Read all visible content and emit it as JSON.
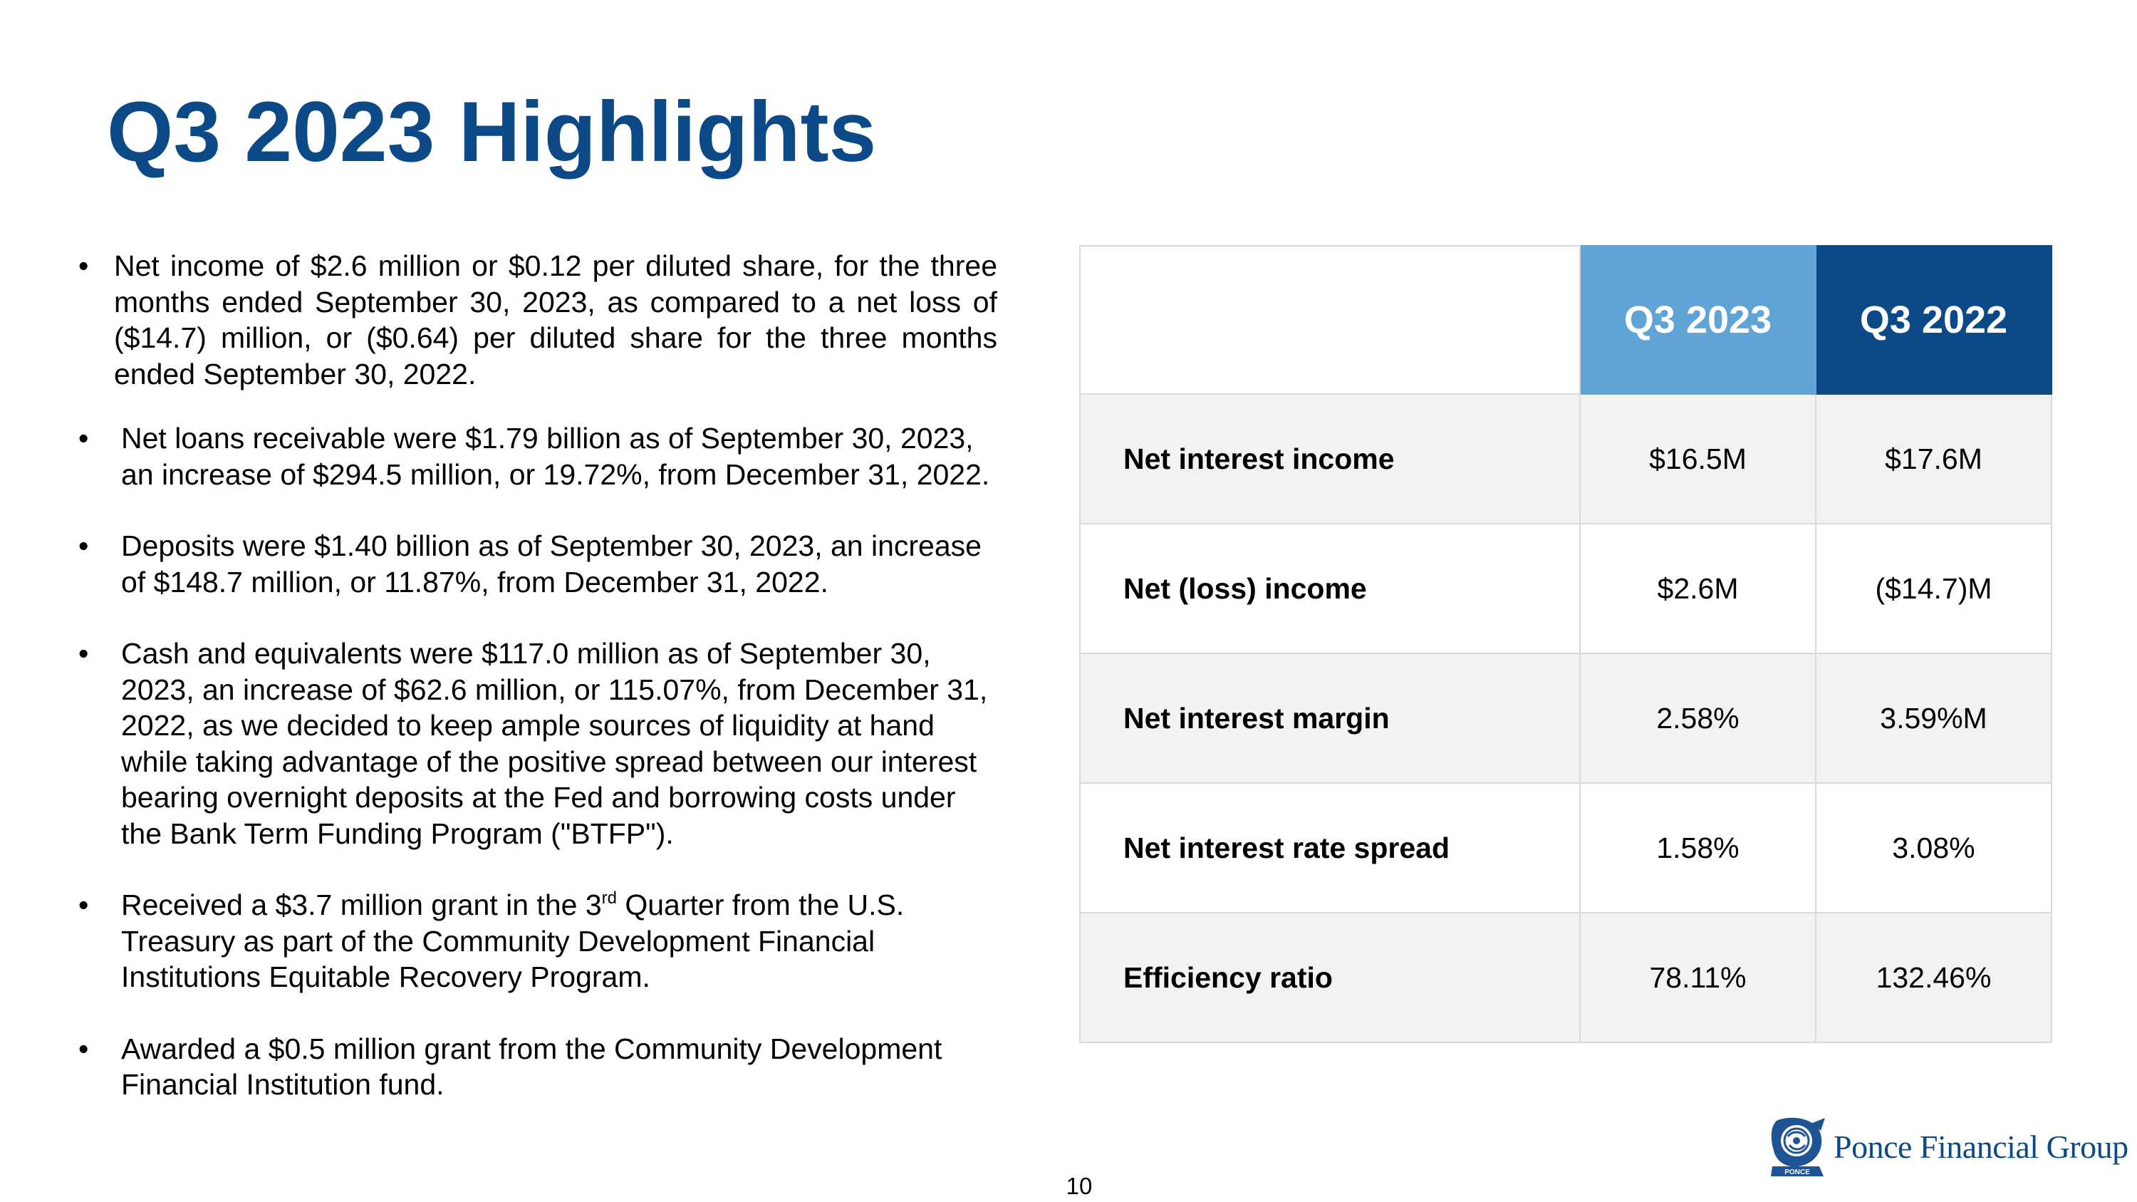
{
  "title": "Q3 2023 Highlights",
  "bullets": {
    "b1": "Net income of $2.6 million or $0.12 per diluted share, for the three months ended September 30, 2023, as compared to a net loss of ($14.7) million, or ($0.64) per diluted share for the three months ended September 30, 2022.",
    "b2": "Net loans receivable were $1.79 billion as of September 30, 2023, an increase of $294.5 million, or 19.72%, from December 31, 2022.",
    "b3": "Deposits were $1.40 billion as of September 30, 2023, an increase of $148.7 million, or 11.87%, from December 31, 2022.",
    "b4": "Cash and equivalents were $117.0 million as of September 30, 2023, an increase of $62.6 million, or 115.07%, from December 31, 2022, as we decided to keep ample sources of liquidity at hand while taking advantage of the positive spread between our interest bearing overnight deposits at the Fed and borrowing costs under the Bank Term Funding Program (\"BTFP\").",
    "b5_pre": "Received a $3.7 million grant in the 3",
    "b5_sup": "rd",
    "b5_post": " Quarter from the U.S. Treasury as part of the Community Development Financial Institutions Equitable Recovery Program.",
    "b6": "Awarded a $0.5 million grant from the Community Development Financial Institution fund."
  },
  "table": {
    "headers": [
      "Q3 2023",
      "Q3 2022"
    ],
    "rows": [
      {
        "label": "Net interest income",
        "q3_2023": "$16.5M",
        "q3_2022": "$17.6M"
      },
      {
        "label": "Net (loss) income",
        "q3_2023": "$2.6M",
        "q3_2022": "($14.7)M"
      },
      {
        "label": "Net interest margin",
        "q3_2023": "2.58%",
        "q3_2022": "3.59%M"
      },
      {
        "label": "Net interest rate spread",
        "q3_2023": "1.58%",
        "q3_2022": "3.08%"
      },
      {
        "label": "Efficiency ratio",
        "q3_2023": "78.11%",
        "q3_2022": "132.46%"
      }
    ]
  },
  "page_number": "10",
  "logo": {
    "text": "Ponce Financial Group",
    "icon": "ponce-seal-icon",
    "seal_text": "PONCE"
  },
  "colors": {
    "title": "#0b4a87",
    "q3_2023_header": "#5fa3d7",
    "q3_2022_header": "#0b4a87",
    "row_shade": "#f2f2f2"
  }
}
